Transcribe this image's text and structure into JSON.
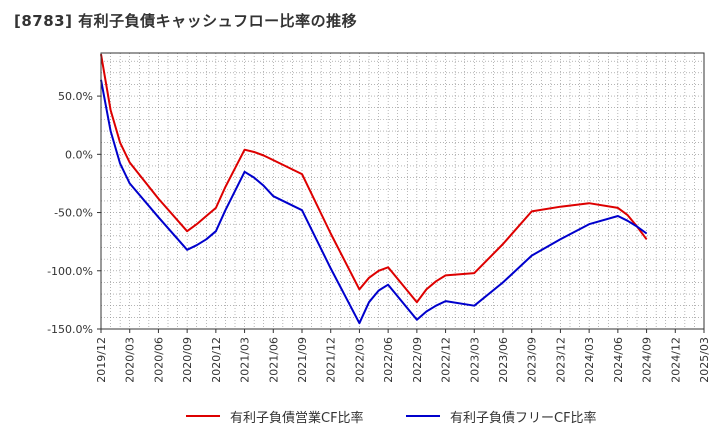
{
  "chart_data": {
    "type": "line",
    "title": "[8783]  有利子負債キャッシュフロー比率の推移",
    "xlabel": "",
    "ylabel": "",
    "x_ticks": [
      "2019/12",
      "2020/03",
      "2020/06",
      "2020/09",
      "2020/12",
      "2021/03",
      "2021/06",
      "2021/09",
      "2021/12",
      "2022/03",
      "2022/06",
      "2022/09",
      "2022/12",
      "2023/03",
      "2023/06",
      "2023/09",
      "2023/12",
      "2024/03",
      "2024/06",
      "2024/09",
      "2024/12",
      "2025/03"
    ],
    "y_ticks": [
      {
        "value": 50,
        "label": "50.0%"
      },
      {
        "value": 0,
        "label": "0.0%"
      },
      {
        "value": -50,
        "label": "-50.0%"
      },
      {
        "value": -100,
        "label": "-100.0%"
      },
      {
        "value": -150,
        "label": "-150.0%"
      }
    ],
    "ylim": [
      -150,
      87
    ],
    "grid": true,
    "legend_position": "bottom",
    "series": [
      {
        "name": "有利子負債営業CF比率",
        "color": "#dd0000",
        "points": [
          [
            "2019/12",
            86
          ],
          [
            "2020/01",
            38
          ],
          [
            "2020/02",
            10
          ],
          [
            "2020/03",
            -7
          ],
          [
            "2020/06",
            -38
          ],
          [
            "2020/09",
            -66
          ],
          [
            "2020/10",
            -60
          ],
          [
            "2020/11",
            -53
          ],
          [
            "2020/12",
            -46
          ],
          [
            "2021/01",
            -28
          ],
          [
            "2021/03",
            4
          ],
          [
            "2021/04",
            2
          ],
          [
            "2021/05",
            -1
          ],
          [
            "2021/06",
            -5
          ],
          [
            "2021/09",
            -17
          ],
          [
            "2021/12",
            -68
          ],
          [
            "2022/03",
            -116
          ],
          [
            "2022/04",
            -106
          ],
          [
            "2022/05",
            -100
          ],
          [
            "2022/06",
            -97
          ],
          [
            "2022/09",
            -127
          ],
          [
            "2022/10",
            -116
          ],
          [
            "2022/11",
            -109
          ],
          [
            "2022/12",
            -104
          ],
          [
            "2023/03",
            -102
          ],
          [
            "2023/06",
            -77
          ],
          [
            "2023/09",
            -49
          ],
          [
            "2023/12",
            -45
          ],
          [
            "2024/03",
            -42
          ],
          [
            "2024/06",
            -46
          ],
          [
            "2024/07",
            -52
          ],
          [
            "2024/08",
            -62
          ],
          [
            "2024/09",
            -73
          ]
        ]
      },
      {
        "name": "有利子負債フリーCF比率",
        "color": "#0000cc",
        "points": [
          [
            "2019/12",
            64
          ],
          [
            "2020/01",
            20
          ],
          [
            "2020/02",
            -8
          ],
          [
            "2020/03",
            -25
          ],
          [
            "2020/06",
            -54
          ],
          [
            "2020/09",
            -82
          ],
          [
            "2020/10",
            -78
          ],
          [
            "2020/11",
            -73
          ],
          [
            "2020/12",
            -66
          ],
          [
            "2021/01",
            -48
          ],
          [
            "2021/03",
            -15
          ],
          [
            "2021/04",
            -20
          ],
          [
            "2021/05",
            -27
          ],
          [
            "2021/06",
            -36
          ],
          [
            "2021/09",
            -48
          ],
          [
            "2021/12",
            -98
          ],
          [
            "2022/03",
            -145
          ],
          [
            "2022/04",
            -127
          ],
          [
            "2022/05",
            -117
          ],
          [
            "2022/06",
            -112
          ],
          [
            "2022/09",
            -142
          ],
          [
            "2022/10",
            -135
          ],
          [
            "2022/11",
            -130
          ],
          [
            "2022/12",
            -126
          ],
          [
            "2023/03",
            -130
          ],
          [
            "2023/06",
            -110
          ],
          [
            "2023/09",
            -87
          ],
          [
            "2023/12",
            -73
          ],
          [
            "2024/03",
            -60
          ],
          [
            "2024/06",
            -53
          ],
          [
            "2024/07",
            -57
          ],
          [
            "2024/08",
            -62
          ],
          [
            "2024/09",
            -68
          ]
        ]
      }
    ]
  }
}
